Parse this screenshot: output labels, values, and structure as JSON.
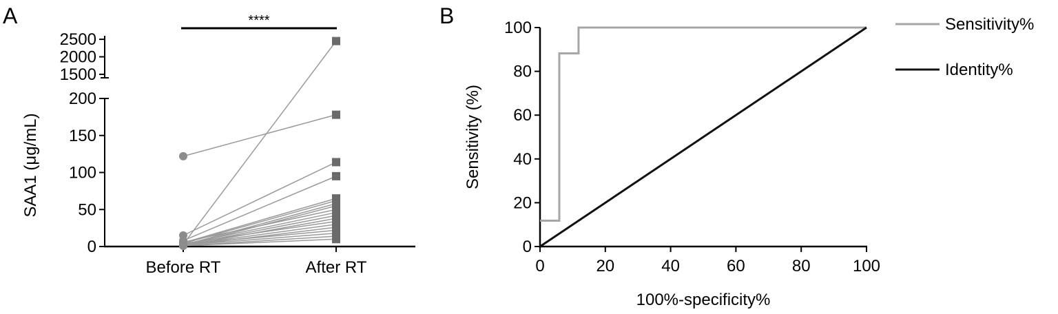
{
  "chart_data": [
    {
      "panel_label": "A",
      "type": "scatter",
      "ylabel": "SAA1 (μg/mL)",
      "xlabel": "",
      "categories": [
        "Before RT",
        "After RT"
      ],
      "y_axis": {
        "broken": true,
        "lower_segment": {
          "range": [
            0,
            200
          ],
          "ticks": [
            "0",
            "50",
            "100",
            "150",
            "200"
          ]
        },
        "upper_segment": {
          "range": [
            1400,
            2600
          ],
          "ticks": [
            "1500",
            "2000",
            "2500"
          ]
        }
      },
      "significance": "****",
      "colors": {
        "before": "#8c8c8c",
        "after": "#6b6b6b",
        "lines": "#9a9a9a"
      },
      "pairs": [
        {
          "before": 122,
          "after": 178
        },
        {
          "before": 3,
          "after": 2450
        },
        {
          "before": 15,
          "after": 114
        },
        {
          "before": 8,
          "after": 95
        },
        {
          "before": 5,
          "after": 65
        },
        {
          "before": 4,
          "after": 62
        },
        {
          "before": 2,
          "after": 58
        },
        {
          "before": 1,
          "after": 55
        },
        {
          "before": 6,
          "after": 50
        },
        {
          "before": 3,
          "after": 46
        },
        {
          "before": 2,
          "after": 42
        },
        {
          "before": 1,
          "after": 38
        },
        {
          "before": 4,
          "after": 34
        },
        {
          "before": 2,
          "after": 30
        },
        {
          "before": 1,
          "after": 26
        },
        {
          "before": 3,
          "after": 22
        },
        {
          "before": 2,
          "after": 18
        },
        {
          "before": 1,
          "after": 14
        },
        {
          "before": 1,
          "after": 10
        }
      ]
    },
    {
      "panel_label": "B",
      "type": "line",
      "xlabel": "100%-specificity%",
      "ylabel": "Sensitivity (%)",
      "xlim": [
        0,
        100
      ],
      "ylim": [
        0,
        100
      ],
      "xticks": [
        "0",
        "20",
        "40",
        "60",
        "80",
        "100"
      ],
      "yticks": [
        "0",
        "20",
        "40",
        "60",
        "80",
        "100"
      ],
      "legend_position": "right",
      "series": [
        {
          "name": "Sensitivity%",
          "color": "#a6a6a6",
          "x": [
            0,
            5.9,
            5.9,
            11.8,
            11.8,
            100
          ],
          "y": [
            11.8,
            11.8,
            88.2,
            88.2,
            100,
            100
          ]
        },
        {
          "name": "Identity%",
          "color": "#111111",
          "x": [
            0,
            100
          ],
          "y": [
            0,
            100
          ]
        }
      ]
    }
  ]
}
